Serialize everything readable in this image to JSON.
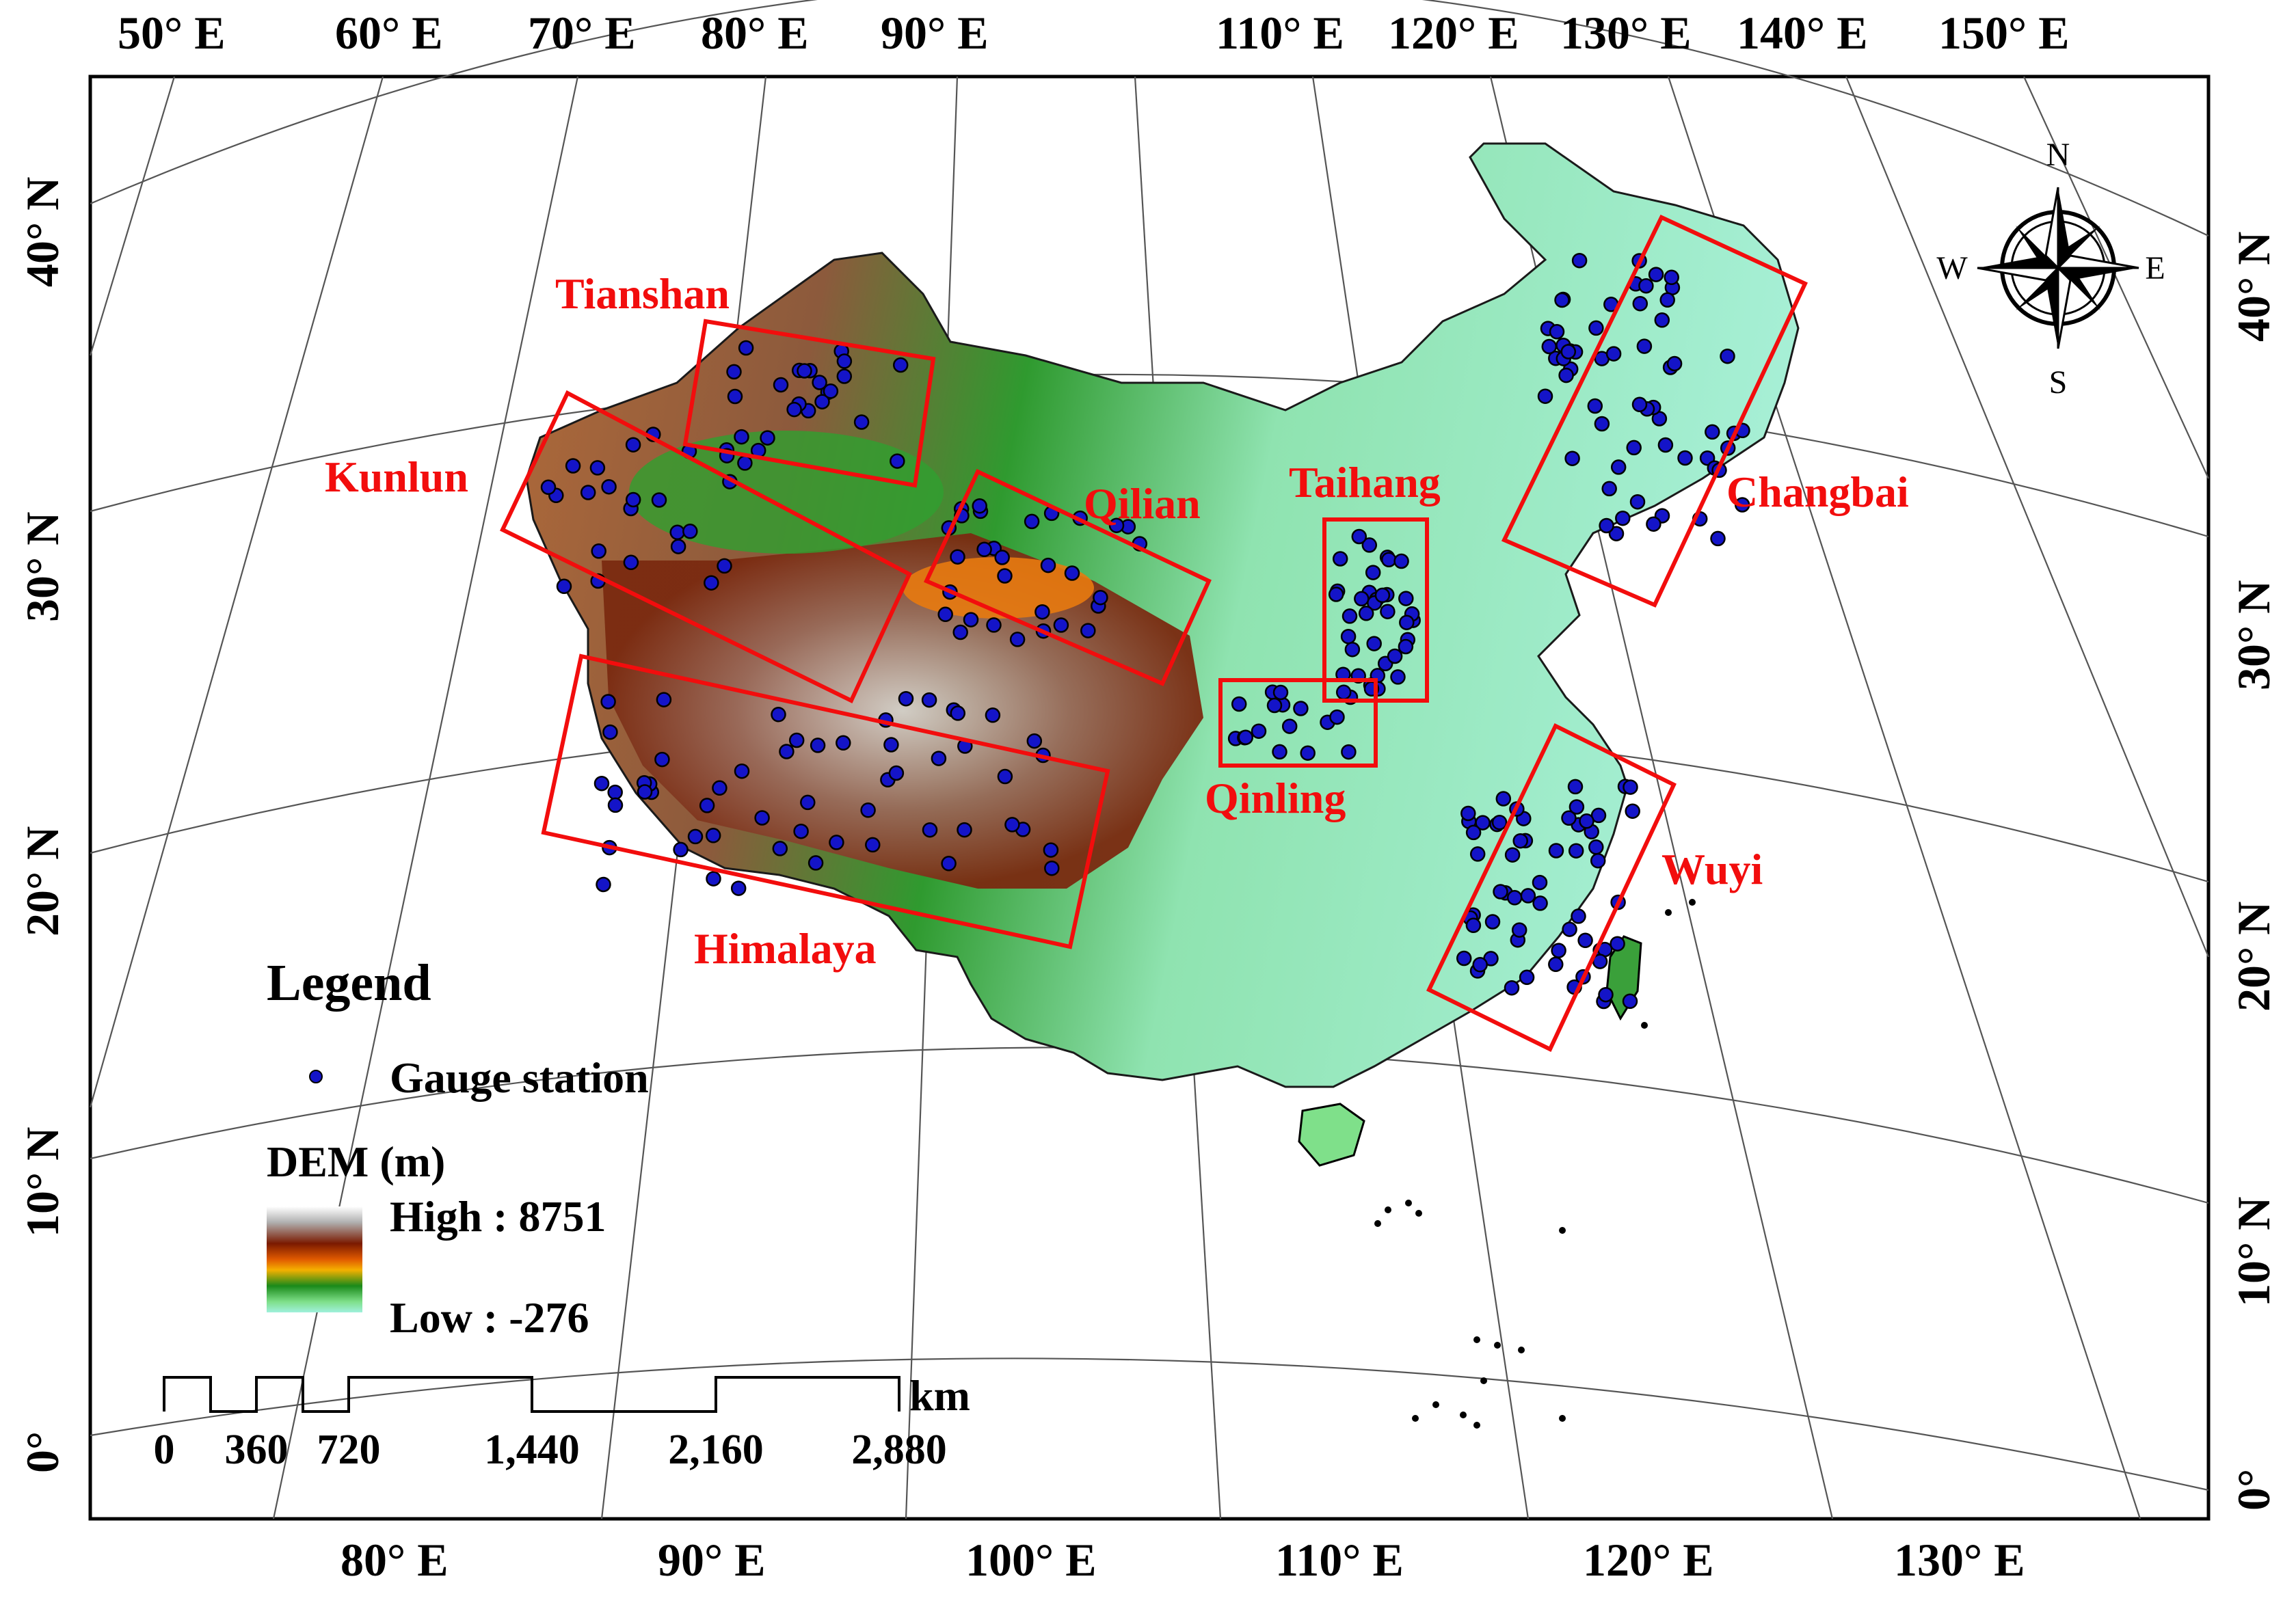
{
  "top_lon_labels": [
    "50° E",
    "60° E",
    "70° E",
    "80° E",
    "90° E",
    "110° E",
    "120° E",
    "130° E",
    "140° E",
    "150° E"
  ],
  "bottom_lon_labels": [
    "80° E",
    "90° E",
    "100° E",
    "110° E",
    "120° E",
    "130° E"
  ],
  "left_lat_labels": [
    "40° N",
    "30° N",
    "20° N",
    "10° N",
    "0°"
  ],
  "right_lat_labels": [
    "40° N",
    "30° N",
    "20° N",
    "10° N",
    "0°"
  ],
  "regions": [
    "Tianshan",
    "Kunlun",
    "Qilian",
    "Taihang",
    "Changbai",
    "Qinling",
    "Himalaya",
    "Wuyi"
  ],
  "compass": {
    "n": "N",
    "e": "E",
    "s": "S",
    "w": "W"
  },
  "legend": {
    "title": "Legend",
    "gauge_label": "Gauge station",
    "dem_title": "DEM (m)",
    "high": "High : 8751",
    "low": "Low : -276"
  },
  "scale_bar": {
    "unit": "km",
    "ticks": [
      "0",
      "360",
      "720",
      "1,440",
      "2,160",
      "2,880"
    ]
  },
  "colors": {
    "region_box": "#f20d0d",
    "region_label": "#f20d0d",
    "station_fill": "#1414c8",
    "dem_gradient": [
      "#ffffff",
      "#b0b0b0",
      "#8a3a10",
      "#7a1a00",
      "#e05a00",
      "#f5b000",
      "#1a8a1a",
      "#7fe08a",
      "#9ff0dc"
    ]
  }
}
